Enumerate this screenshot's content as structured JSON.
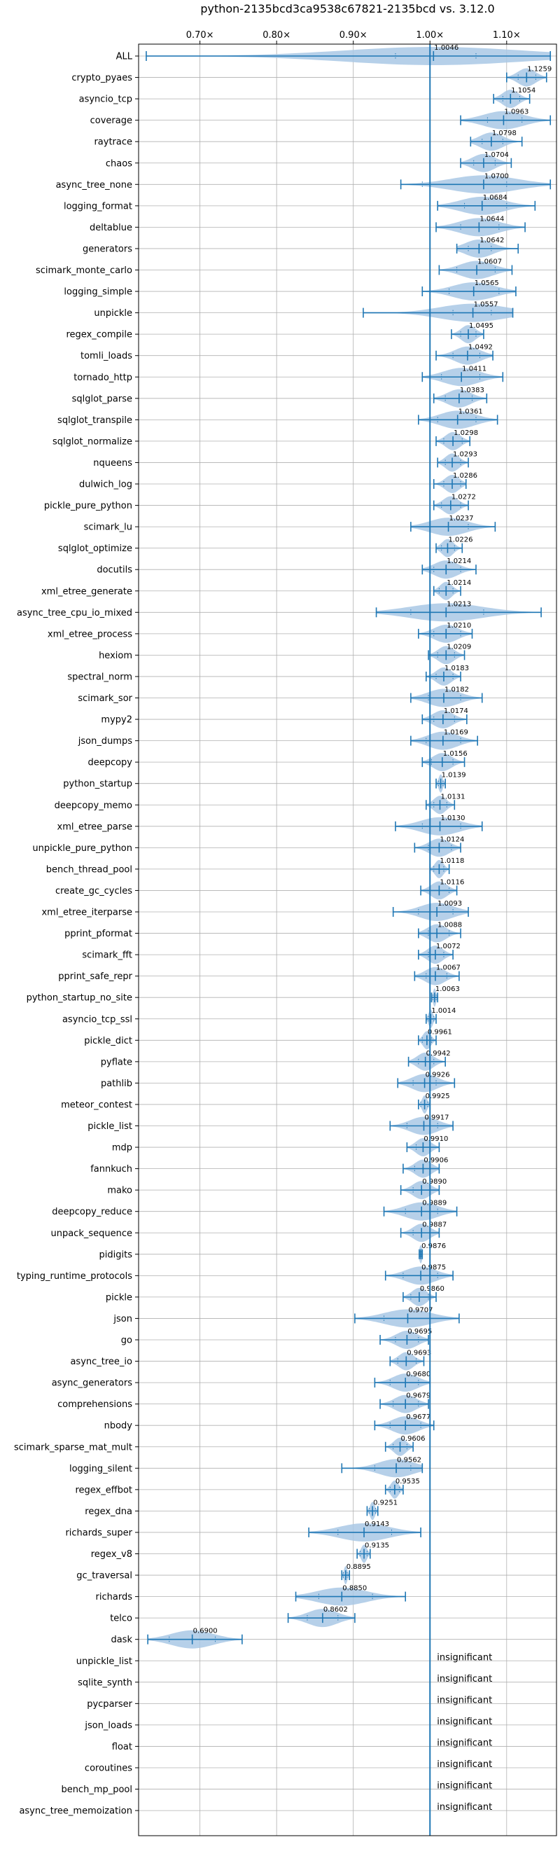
{
  "chart_data": {
    "type": "violin",
    "title": "python-2135bcd3ca9538c67821-2135bcd vs. 3.12.0",
    "xlim": [
      0.62,
      1.165
    ],
    "xticks": [
      0.7,
      0.8,
      0.9,
      1.0,
      1.1
    ],
    "xtick_labels": [
      "0.70×",
      "0.80×",
      "0.90×",
      "1.00×",
      "1.10×"
    ],
    "reference_line": 1.0,
    "grid": true,
    "insignificant_label": "insignificant",
    "colors": {
      "violin": "#a9c8e5",
      "line": "#1f77b4"
    },
    "benchmarks": [
      {
        "name": "ALL",
        "value": "1.0046",
        "center": 1.0046,
        "min": 0.63,
        "max": 1.157,
        "q1": 0.955,
        "q3": 1.06
      },
      {
        "name": "crypto_pyaes",
        "value": "1.1259",
        "center": 1.126,
        "min": 1.1,
        "max": 1.152,
        "q1": 1.115,
        "q3": 1.138
      },
      {
        "name": "asyncio_tcp",
        "value": "1.1054",
        "center": 1.105,
        "min": 1.083,
        "max": 1.13,
        "q1": 1.095,
        "q3": 1.117
      },
      {
        "name": "coverage",
        "value": "1.0963",
        "center": 1.096,
        "min": 1.04,
        "max": 1.157,
        "q1": 1.075,
        "q3": 1.12
      },
      {
        "name": "raytrace",
        "value": "1.0798",
        "center": 1.08,
        "min": 1.053,
        "max": 1.12,
        "q1": 1.068,
        "q3": 1.095
      },
      {
        "name": "chaos",
        "value": "1.0704",
        "center": 1.07,
        "min": 1.04,
        "max": 1.106,
        "q1": 1.057,
        "q3": 1.085
      },
      {
        "name": "async_tree_none",
        "value": "1.0700",
        "center": 1.07,
        "min": 0.962,
        "max": 1.157,
        "q1": 0.99,
        "q3": 1.1
      },
      {
        "name": "logging_format",
        "value": "1.0684",
        "center": 1.068,
        "min": 1.01,
        "max": 1.137,
        "q1": 1.045,
        "q3": 1.1
      },
      {
        "name": "deltablue",
        "value": "1.0644",
        "center": 1.064,
        "min": 1.008,
        "max": 1.124,
        "q1": 1.04,
        "q3": 1.09
      },
      {
        "name": "generators",
        "value": "1.0642",
        "center": 1.064,
        "min": 1.035,
        "max": 1.115,
        "q1": 1.05,
        "q3": 1.08
      },
      {
        "name": "scimark_monte_carlo",
        "value": "1.0607",
        "center": 1.061,
        "min": 1.012,
        "max": 1.107,
        "q1": 1.035,
        "q3": 1.085
      },
      {
        "name": "logging_simple",
        "value": "1.0565",
        "center": 1.057,
        "min": 0.99,
        "max": 1.112,
        "q1": 1.025,
        "q3": 1.09
      },
      {
        "name": "unpickle",
        "value": "1.0557",
        "center": 1.056,
        "min": 0.913,
        "max": 1.108,
        "q1": 1.03,
        "q3": 1.08
      },
      {
        "name": "regex_compile",
        "value": "1.0495",
        "center": 1.05,
        "min": 1.028,
        "max": 1.07,
        "q1": 1.04,
        "q3": 1.06
      },
      {
        "name": "tomli_loads",
        "value": "1.0492",
        "center": 1.049,
        "min": 1.008,
        "max": 1.082,
        "q1": 1.03,
        "q3": 1.065
      },
      {
        "name": "tornado_http",
        "value": "1.0411",
        "center": 1.041,
        "min": 0.99,
        "max": 1.095,
        "q1": 1.015,
        "q3": 1.065
      },
      {
        "name": "sqlglot_parse",
        "value": "1.0383",
        "center": 1.038,
        "min": 1.005,
        "max": 1.074,
        "q1": 1.02,
        "q3": 1.055
      },
      {
        "name": "sqlglot_transpile",
        "value": "1.0361",
        "center": 1.036,
        "min": 0.985,
        "max": 1.088,
        "q1": 1.01,
        "q3": 1.06
      },
      {
        "name": "sqlglot_normalize",
        "value": "1.0298",
        "center": 1.03,
        "min": 1.008,
        "max": 1.052,
        "q1": 1.018,
        "q3": 1.042
      },
      {
        "name": "nqueens",
        "value": "1.0293",
        "center": 1.029,
        "min": 1.01,
        "max": 1.05,
        "q1": 1.02,
        "q3": 1.04
      },
      {
        "name": "dulwich_log",
        "value": "1.0286",
        "center": 1.029,
        "min": 1.005,
        "max": 1.047,
        "q1": 1.018,
        "q3": 1.04
      },
      {
        "name": "pickle_pure_python",
        "value": "1.0272",
        "center": 1.027,
        "min": 1.005,
        "max": 1.05,
        "q1": 1.015,
        "q3": 1.04
      },
      {
        "name": "scimark_lu",
        "value": "1.0237",
        "center": 1.024,
        "min": 0.975,
        "max": 1.085,
        "q1": 1.0,
        "q3": 1.05
      },
      {
        "name": "sqlglot_optimize",
        "value": "1.0226",
        "center": 1.023,
        "min": 1.008,
        "max": 1.042,
        "q1": 1.015,
        "q3": 1.032
      },
      {
        "name": "docutils",
        "value": "1.0214",
        "center": 1.021,
        "min": 0.99,
        "max": 1.06,
        "q1": 1.005,
        "q3": 1.04
      },
      {
        "name": "xml_etree_generate",
        "value": "1.0214",
        "center": 1.021,
        "min": 1.005,
        "max": 1.04,
        "q1": 1.012,
        "q3": 1.03
      },
      {
        "name": "async_tree_cpu_io_mixed",
        "value": "1.0213",
        "center": 1.021,
        "min": 0.93,
        "max": 1.145,
        "q1": 0.975,
        "q3": 1.07
      },
      {
        "name": "xml_etree_process",
        "value": "1.0210",
        "center": 1.021,
        "min": 0.985,
        "max": 1.055,
        "q1": 1.005,
        "q3": 1.04
      },
      {
        "name": "hexiom",
        "value": "1.0209",
        "center": 1.021,
        "min": 0.998,
        "max": 1.045,
        "q1": 1.01,
        "q3": 1.032
      },
      {
        "name": "spectral_norm",
        "value": "1.0183",
        "center": 1.018,
        "min": 0.995,
        "max": 1.04,
        "q1": 1.008,
        "q3": 1.03
      },
      {
        "name": "scimark_sor",
        "value": "1.0182",
        "center": 1.018,
        "min": 0.975,
        "max": 1.068,
        "q1": 0.998,
        "q3": 1.04
      },
      {
        "name": "mypy2",
        "value": "1.0174",
        "center": 1.017,
        "min": 0.99,
        "max": 1.048,
        "q1": 1.005,
        "q3": 1.032
      },
      {
        "name": "json_dumps",
        "value": "1.0169",
        "center": 1.017,
        "min": 0.975,
        "max": 1.062,
        "q1": 0.995,
        "q3": 1.04
      },
      {
        "name": "deepcopy",
        "value": "1.0156",
        "center": 1.016,
        "min": 0.99,
        "max": 1.045,
        "q1": 1.002,
        "q3": 1.03
      },
      {
        "name": "python_startup",
        "value": "1.0139",
        "center": 1.014,
        "min": 1.008,
        "max": 1.02,
        "q1": 1.011,
        "q3": 1.017
      },
      {
        "name": "deepcopy_memo",
        "value": "1.0131",
        "center": 1.013,
        "min": 0.995,
        "max": 1.032,
        "q1": 1.005,
        "q3": 1.022
      },
      {
        "name": "xml_etree_parse",
        "value": "1.0130",
        "center": 1.013,
        "min": 0.955,
        "max": 1.068,
        "q1": 0.99,
        "q3": 1.04
      },
      {
        "name": "unpickle_pure_python",
        "value": "1.0124",
        "center": 1.012,
        "min": 0.98,
        "max": 1.04,
        "q1": 0.998,
        "q3": 1.028
      },
      {
        "name": "bench_thread_pool",
        "value": "1.0118",
        "center": 1.012,
        "min": 1.0,
        "max": 1.025,
        "q1": 1.005,
        "q3": 1.018
      },
      {
        "name": "create_gc_cycles",
        "value": "1.0116",
        "center": 1.012,
        "min": 0.988,
        "max": 1.035,
        "q1": 1.0,
        "q3": 1.025
      },
      {
        "name": "xml_etree_iterparse",
        "value": "1.0093",
        "center": 1.009,
        "min": 0.952,
        "max": 1.05,
        "q1": 0.985,
        "q3": 1.03
      },
      {
        "name": "pprint_pformat",
        "value": "1.0088",
        "center": 1.009,
        "min": 0.985,
        "max": 1.04,
        "q1": 0.998,
        "q3": 1.025
      },
      {
        "name": "scimark_fft",
        "value": "1.0072",
        "center": 1.007,
        "min": 0.985,
        "max": 1.03,
        "q1": 0.998,
        "q3": 1.018
      },
      {
        "name": "pprint_safe_repr",
        "value": "1.0067",
        "center": 1.007,
        "min": 0.98,
        "max": 1.038,
        "q1": 0.995,
        "q3": 1.022
      },
      {
        "name": "python_startup_no_site",
        "value": "1.0063",
        "center": 1.006,
        "min": 1.002,
        "max": 1.01,
        "q1": 1.004,
        "q3": 1.008
      },
      {
        "name": "asyncio_tcp_ssl",
        "value": "1.0014",
        "center": 1.001,
        "min": 0.995,
        "max": 1.008,
        "q1": 0.998,
        "q3": 1.005
      },
      {
        "name": "pickle_dict",
        "value": "0.9961",
        "center": 0.996,
        "min": 0.985,
        "max": 1.008,
        "q1": 0.99,
        "q3": 1.002
      },
      {
        "name": "pyflate",
        "value": "0.9942",
        "center": 0.994,
        "min": 0.972,
        "max": 1.02,
        "q1": 0.985,
        "q3": 1.005
      },
      {
        "name": "pathlib",
        "value": "0.9926",
        "center": 0.993,
        "min": 0.958,
        "max": 1.032,
        "q1": 0.978,
        "q3": 1.008
      },
      {
        "name": "meteor_contest",
        "value": "0.9925",
        "center": 0.993,
        "min": 0.985,
        "max": 1.0,
        "q1": 0.988,
        "q3": 0.997
      },
      {
        "name": "pickle_list",
        "value": "0.9917",
        "center": 0.992,
        "min": 0.948,
        "max": 1.03,
        "q1": 0.97,
        "q3": 1.01
      },
      {
        "name": "mdp",
        "value": "0.9910",
        "center": 0.991,
        "min": 0.97,
        "max": 1.012,
        "q1": 0.982,
        "q3": 1.0
      },
      {
        "name": "fannkuch",
        "value": "0.9906",
        "center": 0.991,
        "min": 0.965,
        "max": 1.012,
        "q1": 0.98,
        "q3": 1.0
      },
      {
        "name": "mako",
        "value": "0.9890",
        "center": 0.989,
        "min": 0.962,
        "max": 1.012,
        "q1": 0.978,
        "q3": 1.0
      },
      {
        "name": "deepcopy_reduce",
        "value": "0.9889",
        "center": 0.989,
        "min": 0.94,
        "max": 1.035,
        "q1": 0.968,
        "q3": 1.01
      },
      {
        "name": "unpack_sequence",
        "value": "0.9887",
        "center": 0.989,
        "min": 0.962,
        "max": 1.012,
        "q1": 0.978,
        "q3": 1.0
      },
      {
        "name": "pidigits",
        "value": "0.9876",
        "center": 0.988,
        "min": 0.986,
        "max": 0.99,
        "q1": 0.987,
        "q3": 0.989
      },
      {
        "name": "typing_runtime_protocols",
        "value": "0.9875",
        "center": 0.988,
        "min": 0.942,
        "max": 1.03,
        "q1": 0.965,
        "q3": 1.01
      },
      {
        "name": "pickle",
        "value": "0.9860",
        "center": 0.986,
        "min": 0.965,
        "max": 1.008,
        "q1": 0.975,
        "q3": 0.998
      },
      {
        "name": "json",
        "value": "0.9707",
        "center": 0.971,
        "min": 0.902,
        "max": 1.038,
        "q1": 0.94,
        "q3": 1.0
      },
      {
        "name": "go",
        "value": "0.9695",
        "center": 0.97,
        "min": 0.935,
        "max": 0.998,
        "q1": 0.955,
        "q3": 0.985
      },
      {
        "name": "async_tree_io",
        "value": "0.9693",
        "center": 0.969,
        "min": 0.948,
        "max": 0.992,
        "q1": 0.958,
        "q3": 0.982
      },
      {
        "name": "async_generators",
        "value": "0.9680",
        "center": 0.968,
        "min": 0.928,
        "max": 1.0,
        "q1": 0.948,
        "q3": 0.985
      },
      {
        "name": "comprehensions",
        "value": "0.9679",
        "center": 0.968,
        "min": 0.935,
        "max": 0.998,
        "q1": 0.952,
        "q3": 0.985
      },
      {
        "name": "nbody",
        "value": "0.9677",
        "center": 0.968,
        "min": 0.928,
        "max": 1.005,
        "q1": 0.948,
        "q3": 0.988
      },
      {
        "name": "scimark_sparse_mat_mult",
        "value": "0.9606",
        "center": 0.961,
        "min": 0.942,
        "max": 0.978,
        "q1": 0.952,
        "q3": 0.97
      },
      {
        "name": "logging_silent",
        "value": "0.9562",
        "center": 0.956,
        "min": 0.885,
        "max": 0.99,
        "q1": 0.928,
        "q3": 0.975
      },
      {
        "name": "regex_effbot",
        "value": "0.9535",
        "center": 0.954,
        "min": 0.942,
        "max": 0.965,
        "q1": 0.948,
        "q3": 0.96
      },
      {
        "name": "regex_dna",
        "value": "0.9251",
        "center": 0.925,
        "min": 0.918,
        "max": 0.932,
        "q1": 0.921,
        "q3": 0.929
      },
      {
        "name": "richards_super",
        "value": "0.9143",
        "center": 0.914,
        "min": 0.842,
        "max": 0.988,
        "q1": 0.88,
        "q3": 0.95
      },
      {
        "name": "regex_v8",
        "value": "0.9135",
        "center": 0.914,
        "min": 0.905,
        "max": 0.922,
        "q1": 0.909,
        "q3": 0.918
      },
      {
        "name": "gc_traversal",
        "value": "0.8895",
        "center": 0.89,
        "min": 0.885,
        "max": 0.895,
        "q1": 0.887,
        "q3": 0.892
      },
      {
        "name": "richards",
        "value": "0.8850",
        "center": 0.885,
        "min": 0.825,
        "max": 0.968,
        "q1": 0.855,
        "q3": 0.925
      },
      {
        "name": "telco",
        "value": "0.8602",
        "center": 0.86,
        "min": 0.815,
        "max": 0.902,
        "q1": 0.84,
        "q3": 0.88
      },
      {
        "name": "dask",
        "value": "0.6900",
        "center": 0.69,
        "min": 0.632,
        "max": 0.755,
        "q1": 0.66,
        "q3": 0.72
      }
    ],
    "insignificant": [
      "unpickle_list",
      "sqlite_synth",
      "pycparser",
      "json_loads",
      "float",
      "coroutines",
      "bench_mp_pool",
      "async_tree_memoization"
    ]
  }
}
